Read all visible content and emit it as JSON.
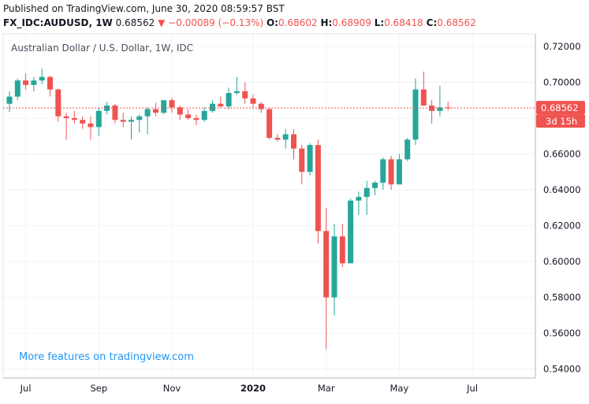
{
  "header": {
    "published": "Published on TradingView.com, June 30, 2020 08:59:57 BST",
    "symbol": "FX_IDC:AUDUSD, 1W",
    "last": "0.68562",
    "change_arrow": "▼",
    "change": "−0.00089 (−0.13%)",
    "open_label": "O:",
    "open": "0.68602",
    "high_label": "H:",
    "high": "0.68909",
    "low_label": "L:",
    "low": "0.68418",
    "close_label": "C:",
    "close": "0.68562"
  },
  "colors": {
    "up": "#26a69a",
    "down": "#ef5350",
    "grid": "#f0f3fa",
    "axis": "#b2b5be",
    "text": "#131722",
    "promo": "#2196f3"
  },
  "chart_data": {
    "type": "candlestick",
    "title": "Australian Dollar / U.S. Dollar, 1W, IDC",
    "promo_text": "More features on tradingview.com",
    "ylim": [
      0.535,
      0.727
    ],
    "y_ticks": [
      0.54,
      0.56,
      0.58,
      0.6,
      0.62,
      0.64,
      0.66,
      0.68,
      0.7,
      0.72
    ],
    "y_tick_labels": [
      "0.54000",
      "0.56000",
      "0.58000",
      "0.60000",
      "0.62000",
      "0.64000",
      "0.66000",
      "0.68000",
      "0.70000",
      "0.72000"
    ],
    "x_ticks": [
      {
        "label": "Jul",
        "index": 2
      },
      {
        "label": "Sep",
        "index": 11
      },
      {
        "label": "Nov",
        "index": 20
      },
      {
        "label": "2020",
        "index": 30
      },
      {
        "label": "Mar",
        "index": 39
      },
      {
        "label": "May",
        "index": 48
      },
      {
        "label": "Jul",
        "index": 57
      }
    ],
    "price_line": 0.68562,
    "price_tag": "0.68562",
    "countdown_tag": "3d 15h",
    "candles": [
      {
        "o": 0.688,
        "h": 0.695,
        "l": 0.6835,
        "c": 0.692
      },
      {
        "o": 0.692,
        "h": 0.702,
        "l": 0.69,
        "c": 0.701
      },
      {
        "o": 0.701,
        "h": 0.705,
        "l": 0.696,
        "c": 0.6985
      },
      {
        "o": 0.6985,
        "h": 0.703,
        "l": 0.695,
        "c": 0.701
      },
      {
        "o": 0.701,
        "h": 0.7075,
        "l": 0.699,
        "c": 0.703
      },
      {
        "o": 0.703,
        "h": 0.7035,
        "l": 0.692,
        "c": 0.696
      },
      {
        "o": 0.696,
        "h": 0.6965,
        "l": 0.678,
        "c": 0.681
      },
      {
        "o": 0.681,
        "h": 0.683,
        "l": 0.668,
        "c": 0.68
      },
      {
        "o": 0.68,
        "h": 0.684,
        "l": 0.677,
        "c": 0.679
      },
      {
        "o": 0.679,
        "h": 0.681,
        "l": 0.674,
        "c": 0.677
      },
      {
        "o": 0.677,
        "h": 0.681,
        "l": 0.668,
        "c": 0.675
      },
      {
        "o": 0.675,
        "h": 0.686,
        "l": 0.67,
        "c": 0.684
      },
      {
        "o": 0.684,
        "h": 0.689,
        "l": 0.682,
        "c": 0.687
      },
      {
        "o": 0.687,
        "h": 0.688,
        "l": 0.677,
        "c": 0.679
      },
      {
        "o": 0.679,
        "h": 0.683,
        "l": 0.675,
        "c": 0.678
      },
      {
        "o": 0.678,
        "h": 0.681,
        "l": 0.668,
        "c": 0.679
      },
      {
        "o": 0.679,
        "h": 0.682,
        "l": 0.672,
        "c": 0.681
      },
      {
        "o": 0.681,
        "h": 0.686,
        "l": 0.671,
        "c": 0.685
      },
      {
        "o": 0.685,
        "h": 0.6885,
        "l": 0.681,
        "c": 0.683
      },
      {
        "o": 0.683,
        "h": 0.69,
        "l": 0.682,
        "c": 0.69
      },
      {
        "o": 0.69,
        "h": 0.6915,
        "l": 0.683,
        "c": 0.686
      },
      {
        "o": 0.686,
        "h": 0.687,
        "l": 0.679,
        "c": 0.682
      },
      {
        "o": 0.682,
        "h": 0.685,
        "l": 0.679,
        "c": 0.68
      },
      {
        "o": 0.68,
        "h": 0.682,
        "l": 0.676,
        "c": 0.679
      },
      {
        "o": 0.679,
        "h": 0.686,
        "l": 0.678,
        "c": 0.684
      },
      {
        "o": 0.684,
        "h": 0.69,
        "l": 0.683,
        "c": 0.688
      },
      {
        "o": 0.688,
        "h": 0.692,
        "l": 0.686,
        "c": 0.6865
      },
      {
        "o": 0.6865,
        "h": 0.697,
        "l": 0.685,
        "c": 0.694
      },
      {
        "o": 0.694,
        "h": 0.703,
        "l": 0.693,
        "c": 0.695
      },
      {
        "o": 0.695,
        "h": 0.7,
        "l": 0.688,
        "c": 0.691
      },
      {
        "o": 0.691,
        "h": 0.693,
        "l": 0.686,
        "c": 0.688
      },
      {
        "o": 0.688,
        "h": 0.689,
        "l": 0.683,
        "c": 0.685
      },
      {
        "o": 0.685,
        "h": 0.6855,
        "l": 0.668,
        "c": 0.669
      },
      {
        "o": 0.669,
        "h": 0.671,
        "l": 0.667,
        "c": 0.668
      },
      {
        "o": 0.668,
        "h": 0.674,
        "l": 0.663,
        "c": 0.671
      },
      {
        "o": 0.671,
        "h": 0.674,
        "l": 0.657,
        "c": 0.663
      },
      {
        "o": 0.663,
        "h": 0.665,
        "l": 0.643,
        "c": 0.65
      },
      {
        "o": 0.65,
        "h": 0.666,
        "l": 0.648,
        "c": 0.665
      },
      {
        "o": 0.665,
        "h": 0.668,
        "l": 0.61,
        "c": 0.617
      },
      {
        "o": 0.617,
        "h": 0.63,
        "l": 0.551,
        "c": 0.58
      },
      {
        "o": 0.58,
        "h": 0.621,
        "l": 0.57,
        "c": 0.614
      },
      {
        "o": 0.614,
        "h": 0.621,
        "l": 0.597,
        "c": 0.599
      },
      {
        "o": 0.599,
        "h": 0.635,
        "l": 0.599,
        "c": 0.634
      },
      {
        "o": 0.634,
        "h": 0.639,
        "l": 0.626,
        "c": 0.636
      },
      {
        "o": 0.636,
        "h": 0.645,
        "l": 0.626,
        "c": 0.641
      },
      {
        "o": 0.641,
        "h": 0.645,
        "l": 0.637,
        "c": 0.644
      },
      {
        "o": 0.644,
        "h": 0.658,
        "l": 0.64,
        "c": 0.657
      },
      {
        "o": 0.657,
        "h": 0.659,
        "l": 0.64,
        "c": 0.643
      },
      {
        "o": 0.643,
        "h": 0.66,
        "l": 0.643,
        "c": 0.657
      },
      {
        "o": 0.657,
        "h": 0.669,
        "l": 0.656,
        "c": 0.668
      },
      {
        "o": 0.668,
        "h": 0.702,
        "l": 0.665,
        "c": 0.696
      },
      {
        "o": 0.696,
        "h": 0.706,
        "l": 0.687,
        "c": 0.687
      },
      {
        "o": 0.687,
        "h": 0.69,
        "l": 0.677,
        "c": 0.684
      },
      {
        "o": 0.684,
        "h": 0.698,
        "l": 0.681,
        "c": 0.686
      },
      {
        "o": 0.686,
        "h": 0.6891,
        "l": 0.6842,
        "c": 0.6856
      }
    ]
  }
}
